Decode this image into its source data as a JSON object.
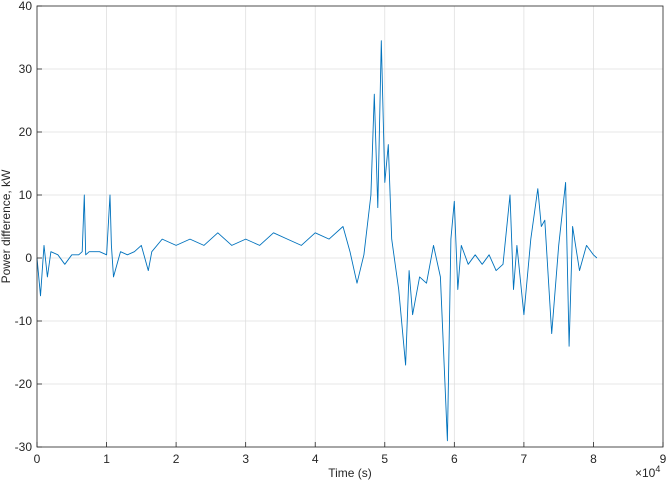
{
  "chart_data": {
    "type": "line",
    "title": "",
    "xlabel": "Time (s)",
    "ylabel": "Power difference, kW",
    "x_exponent_label": "×10",
    "x_exponent_power": "4",
    "xlim": [
      0,
      9
    ],
    "ylim": [
      -30,
      40
    ],
    "xticks": [
      "0",
      "1",
      "2",
      "3",
      "4",
      "5",
      "6",
      "7",
      "8",
      "9"
    ],
    "yticks": [
      "-30",
      "-20",
      "-10",
      "0",
      "10",
      "20",
      "30",
      "40"
    ],
    "grid": true,
    "line_color": "#0072BD",
    "series": [
      {
        "x": [
          0,
          0.05,
          0.1,
          0.15,
          0.2,
          0.3,
          0.4,
          0.5,
          0.6,
          0.65,
          0.68,
          0.7,
          0.75,
          0.9,
          1.0,
          1.05,
          1.07,
          1.1,
          1.2,
          1.3,
          1.4,
          1.5,
          1.6,
          1.65,
          1.8,
          2.0,
          2.2,
          2.4,
          2.6,
          2.8,
          3.0,
          3.2,
          3.4,
          3.6,
          3.8,
          4.0,
          4.2,
          4.4,
          4.5,
          4.6,
          4.7,
          4.8,
          4.85,
          4.9,
          4.95,
          5.0,
          5.05,
          5.1,
          5.2,
          5.3,
          5.35,
          5.4,
          5.5,
          5.6,
          5.7,
          5.8,
          5.9,
          5.95,
          6.0,
          6.05,
          6.1,
          6.2,
          6.3,
          6.4,
          6.5,
          6.6,
          6.7,
          6.8,
          6.85,
          6.9,
          7.0,
          7.1,
          7.2,
          7.25,
          7.3,
          7.4,
          7.5,
          7.6,
          7.65,
          7.7,
          7.8,
          7.9,
          8.0,
          8.05
        ],
        "y": [
          0,
          -6,
          2,
          -3,
          1,
          0.5,
          -1,
          0.5,
          0.5,
          1,
          10,
          0.5,
          1,
          1,
          0.5,
          10,
          2,
          -3,
          1,
          0.5,
          1,
          2,
          -2,
          1,
          3,
          2,
          3,
          2,
          4,
          2,
          3,
          2,
          4,
          3,
          2,
          4,
          3,
          5,
          1,
          -4,
          0.5,
          10,
          26,
          8,
          34.5,
          12,
          18,
          3,
          -5,
          -17,
          -2,
          -9,
          -3,
          -4,
          2,
          -3,
          -29,
          3,
          9,
          -5,
          2,
          -1,
          0.5,
          -1,
          0.5,
          -2,
          -1,
          10,
          -5,
          2,
          -9,
          3,
          11,
          5,
          6,
          -12,
          2,
          12,
          -14,
          5,
          -2,
          2,
          0.5,
          0
        ]
      }
    ]
  }
}
